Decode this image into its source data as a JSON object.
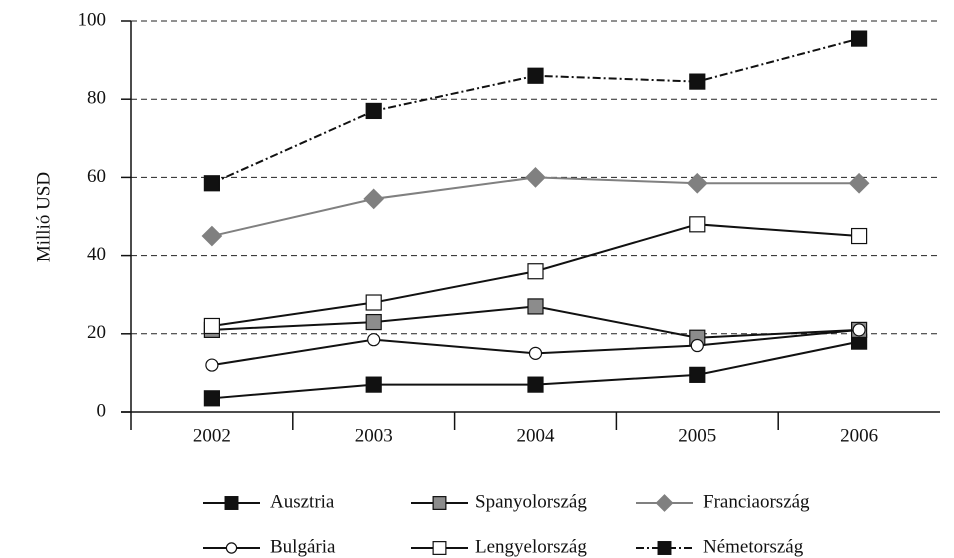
{
  "chart_data": {
    "type": "line",
    "y_label": "Millió USD",
    "categories": [
      "2002",
      "2003",
      "2004",
      "2005",
      "2006"
    ],
    "series": [
      {
        "name": "Ausztria",
        "color": "#111111",
        "marker": "square",
        "marker_fill": "#111111",
        "linestyle": "solid",
        "values": [
          3.5,
          7,
          7,
          9.5,
          18
        ]
      },
      {
        "name": "Spanyolország",
        "color": "#111111",
        "marker": "square",
        "marker_fill": "#8c8c8c",
        "linestyle": "solid",
        "values": [
          21,
          23,
          27,
          19,
          21
        ]
      },
      {
        "name": "Franciaország",
        "color": "#808080",
        "marker": "diamond",
        "marker_fill": "#808080",
        "linestyle": "solid",
        "values": [
          45,
          54.5,
          60,
          58.5,
          58.5
        ]
      },
      {
        "name": "Bulgária",
        "color": "#111111",
        "marker": "circle",
        "marker_fill": "#ffffff",
        "linestyle": "solid",
        "values": [
          12,
          18.5,
          15,
          17,
          21
        ]
      },
      {
        "name": "Lengyelország",
        "color": "#111111",
        "marker": "square",
        "marker_fill": "#ffffff",
        "linestyle": "solid",
        "values": [
          22,
          28,
          36,
          48,
          45
        ]
      },
      {
        "name": "Németország",
        "color": "#111111",
        "marker": "square",
        "marker_fill": "#111111",
        "linestyle": "dashdot",
        "values": [
          58.5,
          77,
          86,
          84.5,
          95.5
        ]
      }
    ],
    "ylim": [
      0,
      100
    ],
    "yticks": [
      0,
      20,
      40,
      60,
      80,
      100
    ],
    "grid": true,
    "legend": "bottom"
  }
}
